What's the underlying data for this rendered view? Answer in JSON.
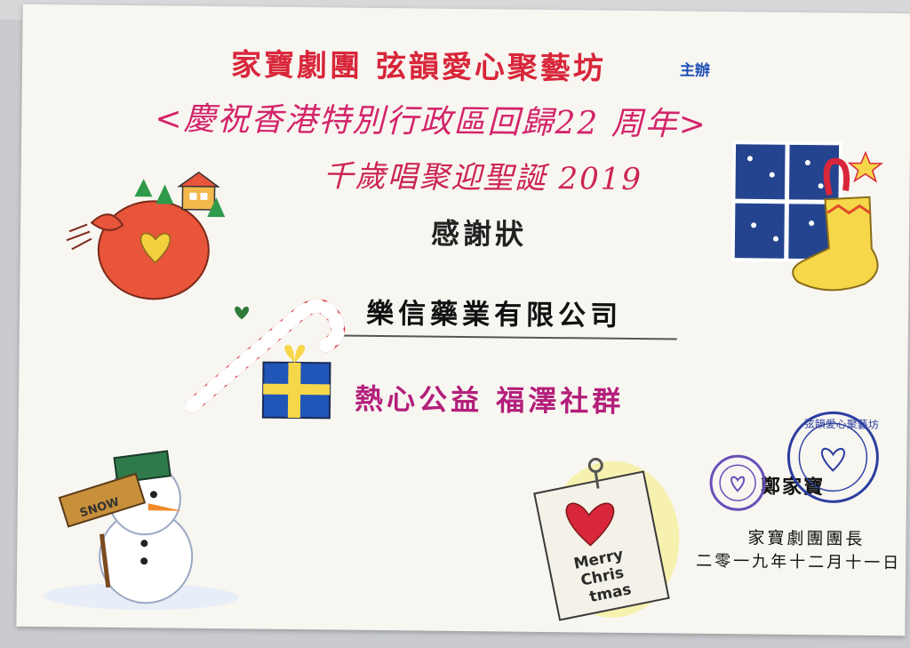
{
  "certificate": {
    "organizers": "家寶劇團  弦韻愛心聚藝坊",
    "host_label": "主辦",
    "celebration": "<慶祝香港特別行政區回歸22 周年>",
    "event": "千歲唱聚迎聖誕 2019",
    "title": "感謝狀",
    "recipient": "樂信藥業有限公司",
    "praise": "熱心公益  福澤社群",
    "signer_name": "鄭家寶",
    "signer_title": "家寶劇團團長",
    "date": "二零一九年十二月十一日"
  },
  "illustrations": {
    "tag_line1": "Merry",
    "tag_line2": "Chris",
    "tag_line3": "tmas",
    "snow_sign": "SNOW",
    "seal_text": "弦韻愛心聚藝坊"
  },
  "colors": {
    "red": "#d8263a",
    "magenta": "#b31f7a",
    "blue_seal": "#2c3ea0"
  }
}
